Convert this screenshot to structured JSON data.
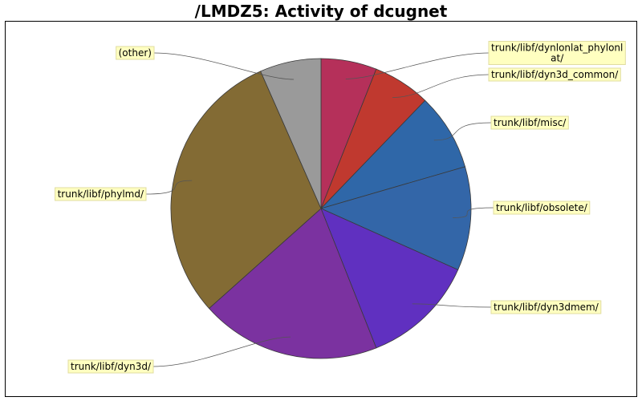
{
  "chart_data": {
    "type": "pie",
    "title": "/LMDZ5: Activity of dcugnet",
    "start_angle": "12 o'clock, clockwise",
    "slices": [
      {
        "label": [
          "trunk/libf/dynlonlat_phylonl",
          "at/"
        ],
        "value": 6.0,
        "color": "#b5305a"
      },
      {
        "label": [
          "trunk/libf/dyn3d_common/"
        ],
        "value": 6.2,
        "color": "#c0392f"
      },
      {
        "label": [
          "trunk/libf/misc/"
        ],
        "value": 8.3,
        "color": "#2f67a8"
      },
      {
        "label": [
          "trunk/libf/obsolete/"
        ],
        "value": 11.2,
        "color": "#3366a8"
      },
      {
        "label": [
          "trunk/libf/dyn3dmem/"
        ],
        "value": 12.3,
        "color": "#6030c0"
      },
      {
        "label": [
          "trunk/libf/dyn3d/"
        ],
        "value": 19.4,
        "color": "#7b32a0"
      },
      {
        "label": [
          "trunk/libf/phylmd/"
        ],
        "value": 30.0,
        "color": "#836b34"
      },
      {
        "label": [
          "(other)"
        ],
        "value": 6.6,
        "color": "#9a9a9a"
      }
    ]
  }
}
